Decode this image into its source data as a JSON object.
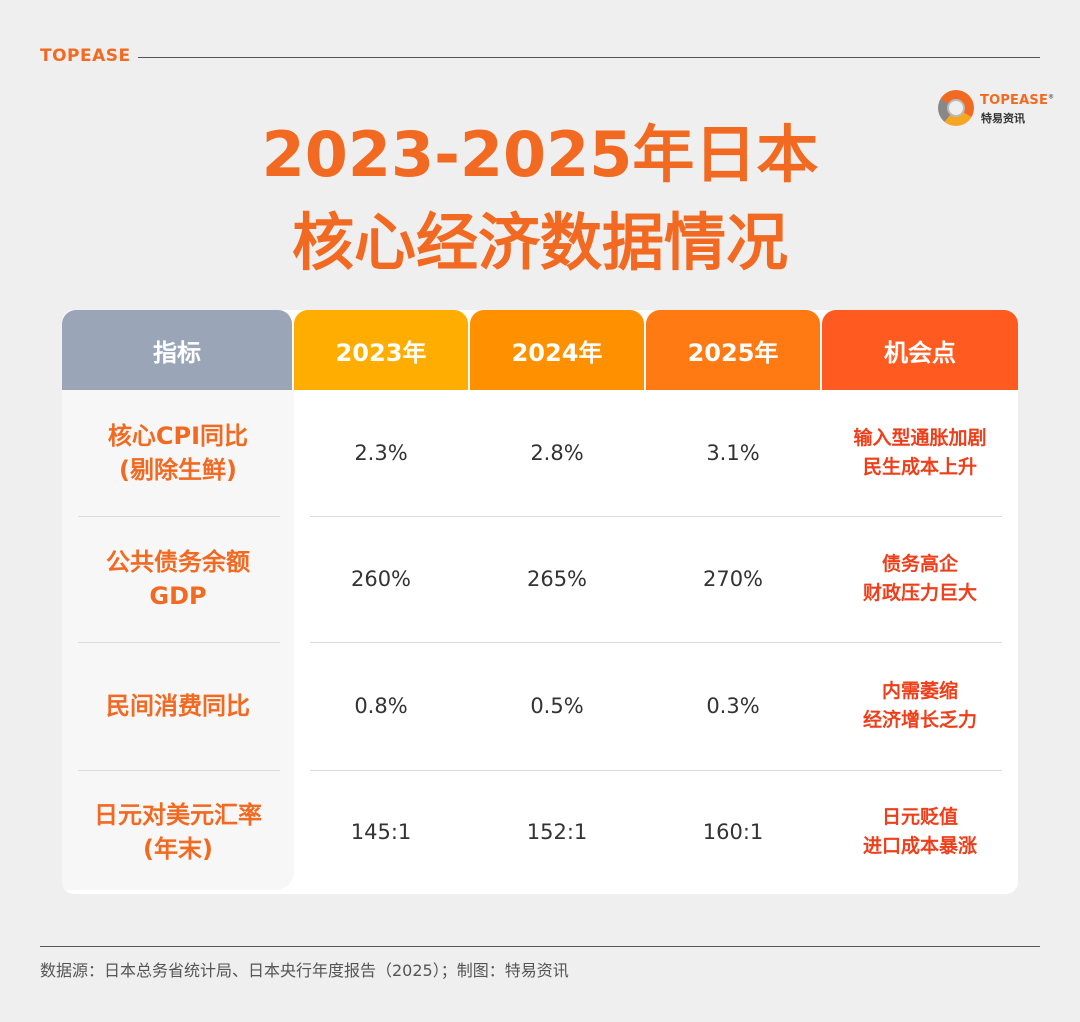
{
  "brand": "TOPEASE",
  "logo": {
    "name": "TOPEASE",
    "sub": "特易资讯"
  },
  "title": {
    "line1": "2023-2025年日本",
    "line2": "核心经济数据情况"
  },
  "colors": {
    "header_indicator": "#9aa6b8",
    "header_2023": "#ffad00",
    "header_2024": "#ff9100",
    "header_2025": "#ff7a12",
    "header_opportunity": "#ff5a1f",
    "accent": "#f26a21"
  },
  "table": {
    "headers": [
      "指标",
      "2023年",
      "2024年",
      "2025年",
      "机会点"
    ],
    "rows": [
      {
        "label_line1": "核心CPI同比",
        "label_line2": "(剔除生鲜)",
        "values": [
          "2.3%",
          "2.8%",
          "3.1%"
        ],
        "opp_line1": "输入型通胀加剧",
        "opp_line2": "民生成本上升"
      },
      {
        "label_line1": "公共债务余额",
        "label_line2": "GDP",
        "values": [
          "260%",
          "265%",
          "270%"
        ],
        "opp_line1": "债务高企",
        "opp_line2": "财政压力巨大"
      },
      {
        "label_line1": "民间消费同比",
        "label_line2": "",
        "values": [
          "0.8%",
          "0.5%",
          "0.3%"
        ],
        "opp_line1": "内需萎缩",
        "opp_line2": "经济增长乏力"
      },
      {
        "label_line1": "日元对美元汇率",
        "label_line2": "(年末)",
        "values": [
          "145:1",
          "152:1",
          "160:1"
        ],
        "opp_line1": "日元贬值",
        "opp_line2": "进口成本暴涨"
      }
    ]
  },
  "source": "数据源：日本总务省统计局、日本央行年度报告（2025）；制图：特易资讯"
}
